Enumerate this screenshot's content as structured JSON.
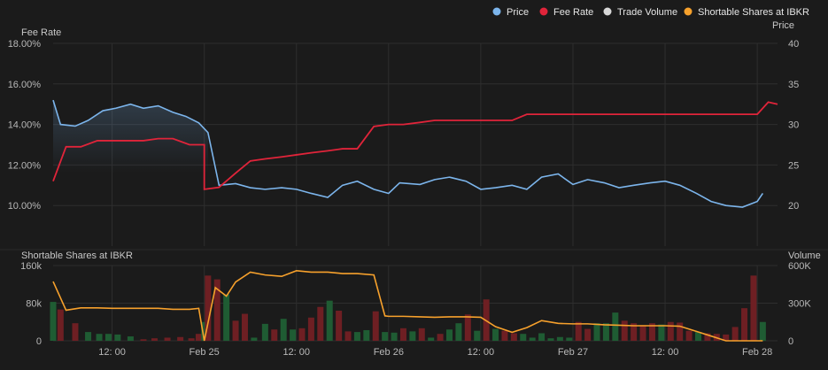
{
  "legend": [
    {
      "name": "Price",
      "color": "#7cb5ec"
    },
    {
      "name": "Fee Rate",
      "color": "#e0243a"
    },
    {
      "name": "Trade Volume",
      "color": "#d8d8d8"
    },
    {
      "name": "Shortable Shares at IBKR",
      "color": "#f7a12c"
    }
  ],
  "panels": {
    "top": {
      "left_axis_title": "Fee Rate",
      "right_axis_title": "Price"
    },
    "bottom": {
      "left_axis_title": "Shortable Shares at IBKR",
      "right_axis_title": "Volume"
    }
  },
  "chart_data": [
    {
      "type": "line",
      "panel": "top",
      "x_ticks": [
        "12: 00",
        "Feb 25",
        "12: 00",
        "Feb 26",
        "12: 00",
        "Feb 27",
        "12: 00",
        "Feb 28"
      ],
      "x_tick_values": [
        0.5,
        1.0,
        1.5,
        2.0,
        2.5,
        3.0,
        3.5,
        4.0
      ],
      "x_range": [
        0.18,
        4.11
      ],
      "y_left": {
        "label": "Fee Rate",
        "ticks": [
          "10.00%",
          "12.00%",
          "14.00%",
          "16.00%",
          "18.00%"
        ],
        "range": [
          8.0,
          18.0
        ],
        "unit": "%"
      },
      "y_right": {
        "label": "Price",
        "ticks": [
          "20",
          "25",
          "30",
          "35",
          "40"
        ],
        "range": [
          15,
          40
        ]
      },
      "series": [
        {
          "name": "Fee Rate",
          "axis": "left",
          "color": "#e0243a",
          "x": [
            0.18,
            0.25,
            0.33,
            0.42,
            0.5,
            0.58,
            0.67,
            0.75,
            0.83,
            0.92,
            1.0,
            1.0,
            1.08,
            1.17,
            1.25,
            1.33,
            1.42,
            1.5,
            1.58,
            1.67,
            1.75,
            1.83,
            1.92,
            2.0,
            2.02,
            2.08,
            2.17,
            2.25,
            2.33,
            2.42,
            2.5,
            2.58,
            2.67,
            2.75,
            2.83,
            2.92,
            3.0,
            3.08,
            3.17,
            3.25,
            3.33,
            3.42,
            3.5,
            3.58,
            3.67,
            3.75,
            3.83,
            3.92,
            4.0,
            4.06,
            4.11
          ],
          "y": [
            11.2,
            12.9,
            12.9,
            13.2,
            13.2,
            13.2,
            13.2,
            13.3,
            13.3,
            13.0,
            13.0,
            10.8,
            10.9,
            11.6,
            12.2,
            12.3,
            12.4,
            12.5,
            12.6,
            12.7,
            12.8,
            12.8,
            13.9,
            14.0,
            14.0,
            14.0,
            14.1,
            14.2,
            14.2,
            14.2,
            14.2,
            14.2,
            14.2,
            14.5,
            14.5,
            14.5,
            14.5,
            14.5,
            14.5,
            14.5,
            14.5,
            14.5,
            14.5,
            14.5,
            14.5,
            14.5,
            14.5,
            14.5,
            14.5,
            15.1,
            15.0
          ]
        },
        {
          "name": "Price",
          "axis": "right",
          "color": "#7cb5ec",
          "area": true,
          "x": [
            0.18,
            0.22,
            0.3,
            0.37,
            0.45,
            0.52,
            0.6,
            0.67,
            0.75,
            0.83,
            0.9,
            0.97,
            1.02,
            1.08,
            1.17,
            1.25,
            1.33,
            1.42,
            1.5,
            1.58,
            1.67,
            1.75,
            1.83,
            1.92,
            2.0,
            2.06,
            2.17,
            2.25,
            2.33,
            2.42,
            2.5,
            2.58,
            2.67,
            2.75,
            2.83,
            2.92,
            3.0,
            3.08,
            3.17,
            3.25,
            3.33,
            3.42,
            3.5,
            3.58,
            3.67,
            3.75,
            3.83,
            3.92,
            4.0,
            4.03
          ],
          "y": [
            33.0,
            30.0,
            29.8,
            30.5,
            31.7,
            32.0,
            32.5,
            32.0,
            32.3,
            31.5,
            31.0,
            30.2,
            29.0,
            22.5,
            22.7,
            22.2,
            22.0,
            22.2,
            22.0,
            21.5,
            21.0,
            22.5,
            23.0,
            22.0,
            21.5,
            22.8,
            22.6,
            23.2,
            23.5,
            23.0,
            22.0,
            22.2,
            22.5,
            22.0,
            23.5,
            23.9,
            22.6,
            23.2,
            22.8,
            22.2,
            22.5,
            22.8,
            23.0,
            22.5,
            21.5,
            20.5,
            20.0,
            19.8,
            20.5,
            21.5
          ]
        }
      ]
    },
    {
      "type": "bar",
      "panel": "bottom",
      "x_ticks": [
        "12: 00",
        "Feb 25",
        "12: 00",
        "Feb 26",
        "12: 00",
        "Feb 27",
        "12: 00",
        "Feb 28"
      ],
      "x_range": [
        0.18,
        4.11
      ],
      "y_left": {
        "label": "Shortable Shares at IBKR",
        "ticks": [
          "0",
          "80k",
          "160k"
        ],
        "range": [
          0,
          160000
        ]
      },
      "y_right": {
        "label": "Volume",
        "ticks": [
          "0",
          "300K",
          "600K"
        ],
        "range": [
          0,
          600000
        ]
      },
      "series": [
        {
          "name": "Trade Volume",
          "type": "bar",
          "axis": "right",
          "up_color": "#1f5c33",
          "down_color": "#6e1f23",
          "x": [
            0.18,
            0.22,
            0.3,
            0.37,
            0.43,
            0.48,
            0.53,
            0.6,
            0.67,
            0.73,
            0.8,
            0.87,
            0.93,
            0.97,
            1.0,
            1.02,
            1.07,
            1.12,
            1.17,
            1.22,
            1.27,
            1.33,
            1.38,
            1.43,
            1.48,
            1.53,
            1.58,
            1.63,
            1.68,
            1.73,
            1.78,
            1.83,
            1.88,
            1.93,
            1.98,
            2.03,
            2.08,
            2.13,
            2.18,
            2.23,
            2.28,
            2.33,
            2.38,
            2.43,
            2.48,
            2.53,
            2.58,
            2.63,
            2.68,
            2.73,
            2.78,
            2.83,
            2.88,
            2.93,
            2.98,
            3.03,
            3.08,
            3.13,
            3.18,
            3.23,
            3.28,
            3.33,
            3.38,
            3.43,
            3.48,
            3.53,
            3.58,
            3.63,
            3.68,
            3.73,
            3.78,
            3.83,
            3.88,
            3.93,
            3.98,
            4.03
          ],
          "values": [
            310000,
            250000,
            140000,
            70000,
            55000,
            55000,
            50000,
            35000,
            12000,
            20000,
            25000,
            30000,
            20000,
            55000,
            150000,
            520000,
            490000,
            370000,
            160000,
            215000,
            25000,
            135000,
            90000,
            175000,
            90000,
            100000,
            185000,
            270000,
            320000,
            240000,
            75000,
            70000,
            85000,
            235000,
            70000,
            65000,
            100000,
            75000,
            100000,
            25000,
            55000,
            90000,
            140000,
            210000,
            80000,
            330000,
            95000,
            80000,
            60000,
            55000,
            25000,
            60000,
            20000,
            30000,
            25000,
            150000,
            95000,
            140000,
            140000,
            225000,
            160000,
            140000,
            125000,
            140000,
            130000,
            150000,
            145000,
            80000,
            70000,
            60000,
            55000,
            50000,
            110000,
            260000,
            520000,
            150000
          ],
          "direction": [
            "up",
            "down",
            "down",
            "up",
            "up",
            "up",
            "up",
            "up",
            "down",
            "down",
            "down",
            "down",
            "down",
            "down",
            "up",
            "down",
            "down",
            "up",
            "down",
            "down",
            "up",
            "up",
            "down",
            "up",
            "up",
            "down",
            "down",
            "down",
            "up",
            "down",
            "down",
            "up",
            "up",
            "down",
            "up",
            "up",
            "down",
            "up",
            "down",
            "up",
            "down",
            "up",
            "up",
            "down",
            "up",
            "down",
            "up",
            "down",
            "down",
            "up",
            "up",
            "up",
            "up",
            "up",
            "up",
            "down",
            "down",
            "up",
            "up",
            "up",
            "down",
            "down",
            "down",
            "down",
            "up",
            "down",
            "down",
            "down",
            "up",
            "down",
            "down",
            "down",
            "down",
            "down",
            "down",
            "up"
          ]
        },
        {
          "name": "Shortable Shares at IBKR",
          "type": "line",
          "axis": "left",
          "color": "#f7a12c",
          "x": [
            0.18,
            0.25,
            0.33,
            0.42,
            0.5,
            0.58,
            0.67,
            0.75,
            0.83,
            0.92,
            0.97,
            1.0,
            1.06,
            1.12,
            1.17,
            1.25,
            1.33,
            1.42,
            1.5,
            1.58,
            1.67,
            1.75,
            1.83,
            1.92,
            1.98,
            2.0,
            2.08,
            2.17,
            2.25,
            2.33,
            2.42,
            2.5,
            2.58,
            2.67,
            2.75,
            2.83,
            2.92,
            3.0,
            3.08,
            3.17,
            3.25,
            3.33,
            3.42,
            3.5,
            3.58,
            3.67,
            3.75,
            3.83,
            3.92,
            4.0,
            4.03
          ],
          "y": [
            126000,
            65000,
            70000,
            70000,
            69000,
            69000,
            69000,
            69000,
            67000,
            67000,
            69000,
            0,
            113000,
            95000,
            125000,
            146000,
            140000,
            137000,
            149000,
            146000,
            146000,
            143000,
            143000,
            140000,
            53000,
            52000,
            52000,
            51000,
            50000,
            51000,
            51000,
            50000,
            30000,
            18000,
            28000,
            43000,
            37000,
            36000,
            36000,
            34000,
            33000,
            32000,
            32000,
            32000,
            31000,
            20000,
            10000,
            0,
            0,
            0,
            0
          ]
        }
      ]
    }
  ]
}
